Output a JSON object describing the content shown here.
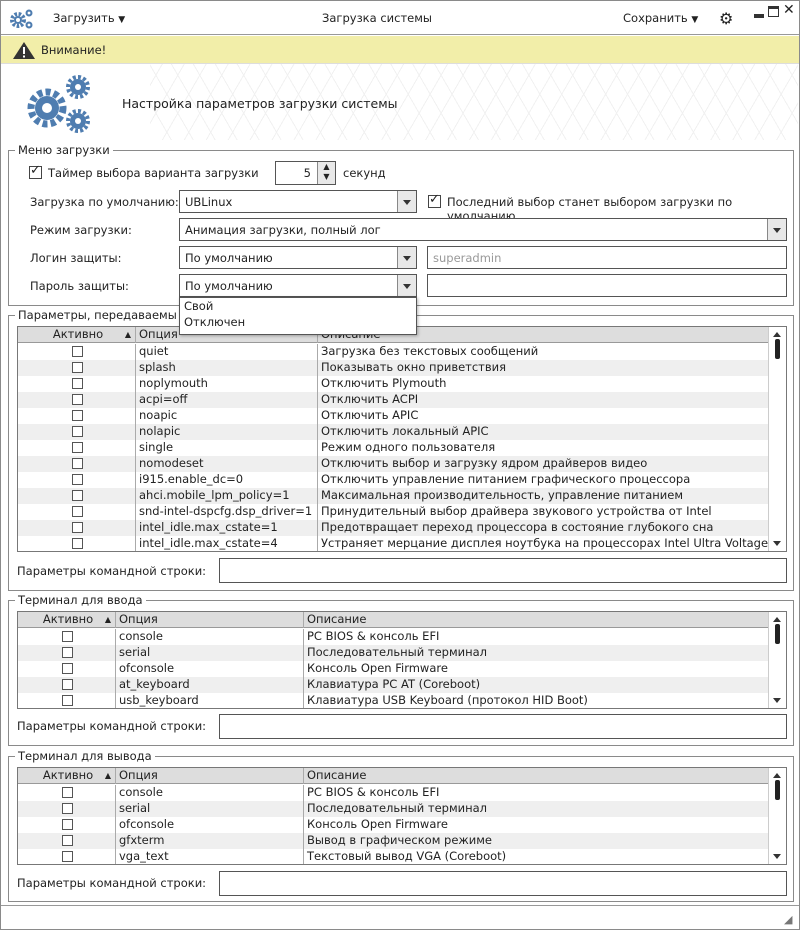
{
  "titlebar": {
    "menu_label": "Загрузить",
    "title": "Загрузка системы",
    "save_label": "Сохранить"
  },
  "warning": {
    "text": "Внимание!"
  },
  "header": {
    "title": "Настройка параметров загрузки системы"
  },
  "boot_menu": {
    "label": "Меню загрузки",
    "timer_label": "Таймер выбора варианта загрузки",
    "timer_checked": true,
    "timer_value": "5",
    "timer_unit": "секунд",
    "default_label": "Загрузка по умолчанию:",
    "default_value": "UBLinux",
    "last_choice_label": "Последний выбор станет выбором загрузки по умолчанию",
    "last_choice_checked": true,
    "mode_label": "Режим загрузки:",
    "mode_value": "Анимация загрузки, полный лог",
    "login_label": "Логин защиты:",
    "login_value": "По умолчанию",
    "login_placeholder": "superadmin",
    "password_label": "Пароль защиты:",
    "password_value": "По умолчанию",
    "password_options": [
      "Свой",
      "Отключен"
    ]
  },
  "kernel_params": {
    "label": "Параметры, передаваемы",
    "columns": [
      "Активно",
      "Опция",
      "Описание"
    ],
    "rows": [
      [
        "quiet",
        "Загрузка без текстовых сообщений"
      ],
      [
        "splash",
        "Показывать окно приветствия"
      ],
      [
        "noplymouth",
        "Отключить Plymouth"
      ],
      [
        "acpi=off",
        "Отключить ACPI"
      ],
      [
        "noapic",
        "Отключить APIC"
      ],
      [
        "nolapic",
        "Отключить локальный APIC"
      ],
      [
        "single",
        "Режим одного пользователя"
      ],
      [
        "nomodeset",
        "Отключить выбор и загрузку ядром драйверов видео"
      ],
      [
        "i915.enable_dc=0",
        "Отключить управление питанием графического процессора"
      ],
      [
        "ahci.mobile_lpm_policy=1",
        "Максимальная производительность, управление питанием"
      ],
      [
        "snd-intel-dspcfg.dsp_driver=1",
        "Принудительный выбор драйвера звукового устройства от Intel"
      ],
      [
        "intel_idle.max_cstate=1",
        "Предотвращает переход процессора в состояние глубокого сна"
      ],
      [
        "intel_idle.max_cstate=4",
        "Устраняет мерцание дисплея ноутбука на процессорах Intel Ultra Voltage"
      ]
    ],
    "cmdline_label": "Параметры командной строки:"
  },
  "input_terminal": {
    "label": "Терминал для ввода",
    "columns": [
      "Активно",
      "Опция",
      "Описание"
    ],
    "rows": [
      [
        "console",
        "PC BIOS & консоль EFI"
      ],
      [
        "serial",
        "Последовательный терминал"
      ],
      [
        "ofconsole",
        "Консоль Open Firmware"
      ],
      [
        "at_keyboard",
        "Клавиатура PC AT (Coreboot)"
      ],
      [
        "usb_keyboard",
        "Клавиатура USB Keyboard (протокол HID Boot)"
      ]
    ],
    "cmdline_label": "Параметры командной строки:"
  },
  "output_terminal": {
    "label": "Терминал для вывода",
    "columns": [
      "Активно",
      "Опция",
      "Описание"
    ],
    "rows": [
      [
        "console",
        "PC BIOS & консоль EFI"
      ],
      [
        "serial",
        "Последовательный терминал"
      ],
      [
        "ofconsole",
        "Консоль Open Firmware"
      ],
      [
        "gfxterm",
        "Вывод в графическом режиме"
      ],
      [
        "vga_text",
        "Текстовый вывод VGA (Coreboot)"
      ]
    ],
    "cmdline_label": "Параметры командной строки:"
  },
  "colors": {
    "accent": "#4f7db0",
    "warning_bg": "#f2eea9"
  }
}
